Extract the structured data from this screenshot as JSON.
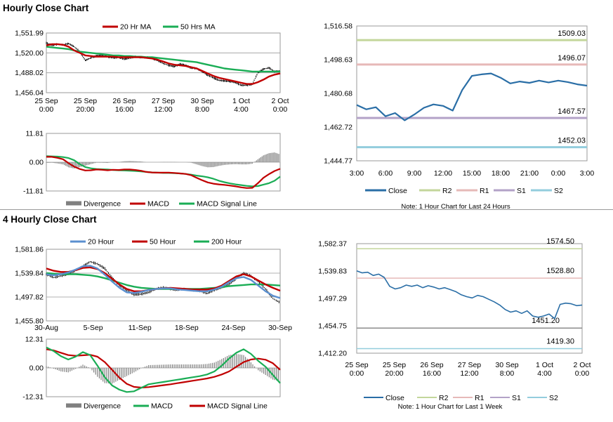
{
  "titles": {
    "hourly": "Hourly Close Chart",
    "four_hourly": "4 Hourly Close Chart"
  },
  "colors": {
    "close": "#2a6ea6",
    "ma20_hourly": "#c00000",
    "ma50_hourly": "#1aad55",
    "ma20_4h": "#5b8fcf",
    "ma50_4h": "#c00000",
    "ma200_4h": "#1aad55",
    "divergence": "#808080",
    "macd_hourly": "#c00000",
    "signal_hourly": "#1aad55",
    "macd_4h": "#1aad55",
    "signal_4h": "#c00000",
    "r2": "#c3d69b",
    "r1": "#e6b9b8",
    "s1": "#b3a2c7",
    "s2": "#93cddd",
    "price_bars": "#000000"
  },
  "chart_data": [
    {
      "id": "hourly_price",
      "type": "line",
      "legend": [
        "20 Hr MA",
        "50 Hrs MA"
      ],
      "yticks": [
        "1,551.99",
        "1,520.00",
        "1,488.02",
        "1,456.04"
      ],
      "ylim": [
        1456.04,
        1551.99
      ],
      "xticks": [
        [
          "25 Sep",
          "0:00"
        ],
        [
          "25 Sep",
          "20:00"
        ],
        [
          "26 Sep",
          "16:00"
        ],
        [
          "27 Sep",
          "12:00"
        ],
        [
          "30 Sep",
          "8:00"
        ],
        [
          "1 Oct",
          "4:00"
        ],
        [
          "2 Oct",
          "0:00"
        ]
      ],
      "close": [
        1536,
        1532,
        1534,
        1533,
        1535,
        1530,
        1522,
        1508,
        1512,
        1515,
        1516,
        1514,
        1512,
        1513,
        1510,
        1512,
        1514,
        1512,
        1513,
        1511,
        1508,
        1503,
        1500,
        1498,
        1502,
        1500,
        1496,
        1495,
        1490,
        1484,
        1480,
        1476,
        1475,
        1474,
        1472,
        1468,
        1468,
        1470,
        1488,
        1494,
        1496,
        1490,
        1491
      ],
      "ma20": [
        1532,
        1534,
        1534,
        1533,
        1530,
        1524,
        1520,
        1516,
        1515,
        1514,
        1514,
        1514,
        1514,
        1513,
        1513,
        1513,
        1513,
        1513,
        1512,
        1511,
        1509,
        1506,
        1503,
        1501,
        1500,
        1499,
        1497,
        1495,
        1491,
        1487,
        1483,
        1480,
        1478,
        1476,
        1474,
        1472,
        1470,
        1470,
        1473,
        1477,
        1482,
        1485,
        1487
      ],
      "ma50": [
        1530,
        1529,
        1528,
        1527,
        1526,
        1524,
        1522,
        1521,
        1520,
        1519,
        1518,
        1517,
        1516,
        1516,
        1515,
        1515,
        1514,
        1514,
        1513,
        1513,
        1512,
        1511,
        1510,
        1509,
        1508,
        1507,
        1506,
        1505,
        1503,
        1501,
        1499,
        1497,
        1495,
        1494,
        1493,
        1492,
        1491,
        1490,
        1490,
        1490,
        1490,
        1490,
        1490
      ]
    },
    {
      "id": "hourly_macd",
      "type": "line",
      "legend": [
        "Divergence",
        "MACD",
        "MACD Signal Line"
      ],
      "yticks": [
        "11.81",
        "0.00",
        "-11.81"
      ],
      "ylim": [
        -11.81,
        11.81
      ],
      "macd": [
        2.2,
        2.2,
        1.8,
        1.2,
        -0.4,
        -1.8,
        -2.8,
        -3.4,
        -3.3,
        -3.0,
        -3.1,
        -3.3,
        -3.1,
        -3.2,
        -3.0,
        -3.0,
        -3.2,
        -3.5,
        -4.0,
        -4.2,
        -4.3,
        -4.3,
        -4.3,
        -4.4,
        -4.6,
        -4.8,
        -5.3,
        -6.4,
        -7.4,
        -8.3,
        -8.8,
        -9.1,
        -9.3,
        -9.6,
        -9.9,
        -10.3,
        -10.6,
        -10.5,
        -8.6,
        -6.4,
        -4.9,
        -3.6,
        -2.7
      ],
      "signal": [
        2.5,
        2.4,
        2.3,
        2.1,
        1.7,
        0.8,
        -0.8,
        -2.0,
        -2.5,
        -2.8,
        -2.9,
        -3.0,
        -3.2,
        -3.3,
        -3.4,
        -3.5,
        -3.6,
        -3.8,
        -4.0,
        -4.2,
        -4.3,
        -4.4,
        -4.4,
        -4.5,
        -4.6,
        -4.8,
        -5.1,
        -5.5,
        -5.8,
        -6.2,
        -6.8,
        -7.6,
        -8.2,
        -8.7,
        -9.1,
        -9.4,
        -9.7,
        -9.9,
        -9.8,
        -9.2,
        -8.6,
        -7.6,
        -5.9
      ],
      "divergence": [
        -0.3,
        -0.2,
        -0.5,
        -0.9,
        -2.1,
        -2.6,
        -2.0,
        -1.4,
        -0.8,
        -0.2,
        -0.2,
        -0.3,
        0.1,
        0.1,
        0.4,
        0.5,
        0.4,
        0.3,
        0.0,
        0.0,
        0.0,
        0.1,
        0.1,
        0.1,
        0.0,
        0.0,
        -0.2,
        -0.9,
        -1.6,
        -2.1,
        -2.0,
        -1.5,
        -1.1,
        -0.9,
        -0.8,
        -0.9,
        -0.9,
        -0.6,
        1.2,
        2.8,
        3.7,
        4.0,
        3.2
      ]
    },
    {
      "id": "hourly_pivots",
      "type": "line",
      "legend": [
        "Close",
        "R2",
        "R1",
        "S1",
        "S2"
      ],
      "note": "Note: 1 Hour Chart for Last 24 Hours",
      "yticks": [
        "1,516.58",
        "1,498.63",
        "1,480.68",
        "1,462.72",
        "1,444.77"
      ],
      "ylim": [
        1444.77,
        1516.58
      ],
      "xticks": [
        "3:00",
        "6:00",
        "9:00",
        "12:00",
        "15:00",
        "18:00",
        "21:00",
        "0:00",
        "3:00"
      ],
      "levels": {
        "R2": 1509.03,
        "R1": 1496.07,
        "S1": 1467.57,
        "S2": 1452.03
      },
      "level_labels": {
        "R2": "1509.03",
        "R1": "1496.07",
        "S1": "1467.57",
        "S2": "1452.03"
      },
      "x": [
        0,
        1,
        2,
        3,
        4,
        5,
        6,
        7,
        8,
        9,
        10,
        11,
        12,
        13,
        14,
        15,
        16,
        17,
        18,
        19,
        20,
        21,
        22,
        23,
        24
      ],
      "close": [
        1474.5,
        1472.2,
        1473.3,
        1468.5,
        1470.2,
        1466.3,
        1469.4,
        1473.0,
        1474.8,
        1474.0,
        1471.5,
        1482.5,
        1490.0,
        1490.8,
        1491.3,
        1489.0,
        1486.0,
        1487.0,
        1486.3,
        1487.5,
        1486.5,
        1487.5,
        1486.7,
        1485.5,
        1484.8
      ]
    },
    {
      "id": "four_hourly_price",
      "type": "line",
      "legend": [
        "20 Hour",
        "50 Hour",
        "200 Hour"
      ],
      "yticks": [
        "1,581.86",
        "1,539.84",
        "1,497.82",
        "1,455.80"
      ],
      "ylim": [
        1455.8,
        1581.86
      ],
      "xticks": [
        "30-Aug",
        "5-Sep",
        "11-Sep",
        "18-Sep",
        "24-Sep",
        "30-Sep"
      ],
      "close": [
        1538,
        1532,
        1535,
        1538,
        1545,
        1552,
        1560,
        1556,
        1548,
        1532,
        1518,
        1510,
        1502,
        1503,
        1506,
        1512,
        1515,
        1512,
        1510,
        1512,
        1510,
        1508,
        1504,
        1510,
        1515,
        1520,
        1530,
        1540,
        1535,
        1525,
        1512,
        1495,
        1488
      ],
      "ma20": [
        1538,
        1536,
        1538,
        1541,
        1546,
        1552,
        1553,
        1548,
        1537,
        1525,
        1514,
        1506,
        1505,
        1507,
        1510,
        1512,
        1513,
        1513,
        1511,
        1510,
        1509,
        1508,
        1508,
        1511,
        1516,
        1524,
        1531,
        1533,
        1528,
        1518,
        1508,
        1500,
        1496
      ],
      "ma50": [
        1548,
        1544,
        1542,
        1542,
        1545,
        1549,
        1550,
        1547,
        1540,
        1530,
        1520,
        1512,
        1508,
        1508,
        1510,
        1512,
        1513,
        1514,
        1513,
        1512,
        1511,
        1511,
        1511,
        1513,
        1518,
        1526,
        1534,
        1538,
        1534,
        1527,
        1520,
        1514,
        1509
      ],
      "ma200": [
        1540,
        1539,
        1538,
        1538,
        1538,
        1537,
        1536,
        1534,
        1531,
        1527,
        1523,
        1519,
        1516,
        1514,
        1513,
        1512,
        1512,
        1512,
        1512,
        1512,
        1512,
        1512,
        1513,
        1514,
        1515,
        1517,
        1518,
        1519,
        1520,
        1520,
        1520,
        1519,
        1518
      ]
    },
    {
      "id": "four_hourly_macd",
      "type": "line",
      "legend": [
        "Divergence",
        "MACD",
        "MACD Signal Line"
      ],
      "yticks": [
        "12.31",
        "0.00",
        "-12.31"
      ],
      "ylim": [
        -12.31,
        12.31
      ],
      "macd": [
        8.8,
        7.2,
        5.0,
        3.6,
        4.8,
        6.8,
        5.5,
        1.0,
        -4.0,
        -7.5,
        -9.3,
        -10.3,
        -10.0,
        -8.5,
        -7.0,
        -6.5,
        -6.0,
        -5.5,
        -5.0,
        -4.5,
        -4.0,
        -3.5,
        -2.8,
        -1.5,
        1.0,
        4.0,
        6.5,
        8.0,
        6.0,
        3.0,
        0.5,
        -3.0,
        -6.5
      ],
      "signal": [
        8.0,
        7.5,
        6.5,
        5.5,
        5.2,
        5.4,
        5.6,
        4.8,
        2.5,
        -0.8,
        -4.2,
        -6.8,
        -8.1,
        -8.4,
        -8.2,
        -7.8,
        -7.4,
        -7.0,
        -6.5,
        -6.0,
        -5.5,
        -5.0,
        -4.5,
        -3.8,
        -2.8,
        -1.5,
        0.5,
        2.5,
        3.6,
        4.0,
        3.5,
        2.0,
        -0.8
      ],
      "divergence": [
        0.8,
        -0.3,
        -1.5,
        -1.9,
        -0.4,
        1.4,
        -0.1,
        -3.8,
        -6.5,
        -6.7,
        -5.1,
        -3.5,
        -1.9,
        -0.1,
        1.2,
        1.3,
        1.4,
        1.5,
        1.5,
        1.5,
        1.5,
        1.5,
        1.7,
        2.3,
        3.8,
        5.5,
        6.0,
        5.5,
        2.4,
        -1.0,
        -3.0,
        -5.0,
        -5.7
      ]
    },
    {
      "id": "four_hourly_pivots",
      "type": "line",
      "legend": [
        "Close",
        "R2",
        "R1",
        "S1",
        "S2"
      ],
      "note": "Note: 1 Hour Chart for Last 1 Week",
      "yticks": [
        "1,582.37",
        "1,539.83",
        "1,497.29",
        "1,454.75",
        "1,412.20"
      ],
      "ylim": [
        1412.2,
        1582.37
      ],
      "xticks": [
        [
          "25 Sep",
          "0:00"
        ],
        [
          "25 Sep",
          "20:00"
        ],
        [
          "26 Sep",
          "16:00"
        ],
        [
          "27 Sep",
          "12:00"
        ],
        [
          "30 Sep",
          "8:00"
        ],
        [
          "1 Oct",
          "4:00"
        ],
        [
          "2 Oct",
          "0:00"
        ]
      ],
      "levels": {
        "R2": 1574.5,
        "R1": 1528.8,
        "S1": 1451.2,
        "S2": 1419.3
      },
      "level_labels": {
        "R2": "1574.50",
        "R1": "1528.80",
        "S1": "1451.20",
        "S2": "1419.30"
      },
      "close": [
        1540,
        1537,
        1538,
        1533,
        1535,
        1530,
        1516,
        1512,
        1514,
        1518,
        1516,
        1518,
        1514,
        1517,
        1515,
        1512,
        1514,
        1511,
        1508,
        1503,
        1500,
        1498,
        1502,
        1500,
        1496,
        1492,
        1487,
        1480,
        1476,
        1478,
        1474,
        1478,
        1470,
        1468,
        1470,
        1473,
        1466,
        1488,
        1490,
        1489,
        1486,
        1487
      ]
    }
  ]
}
